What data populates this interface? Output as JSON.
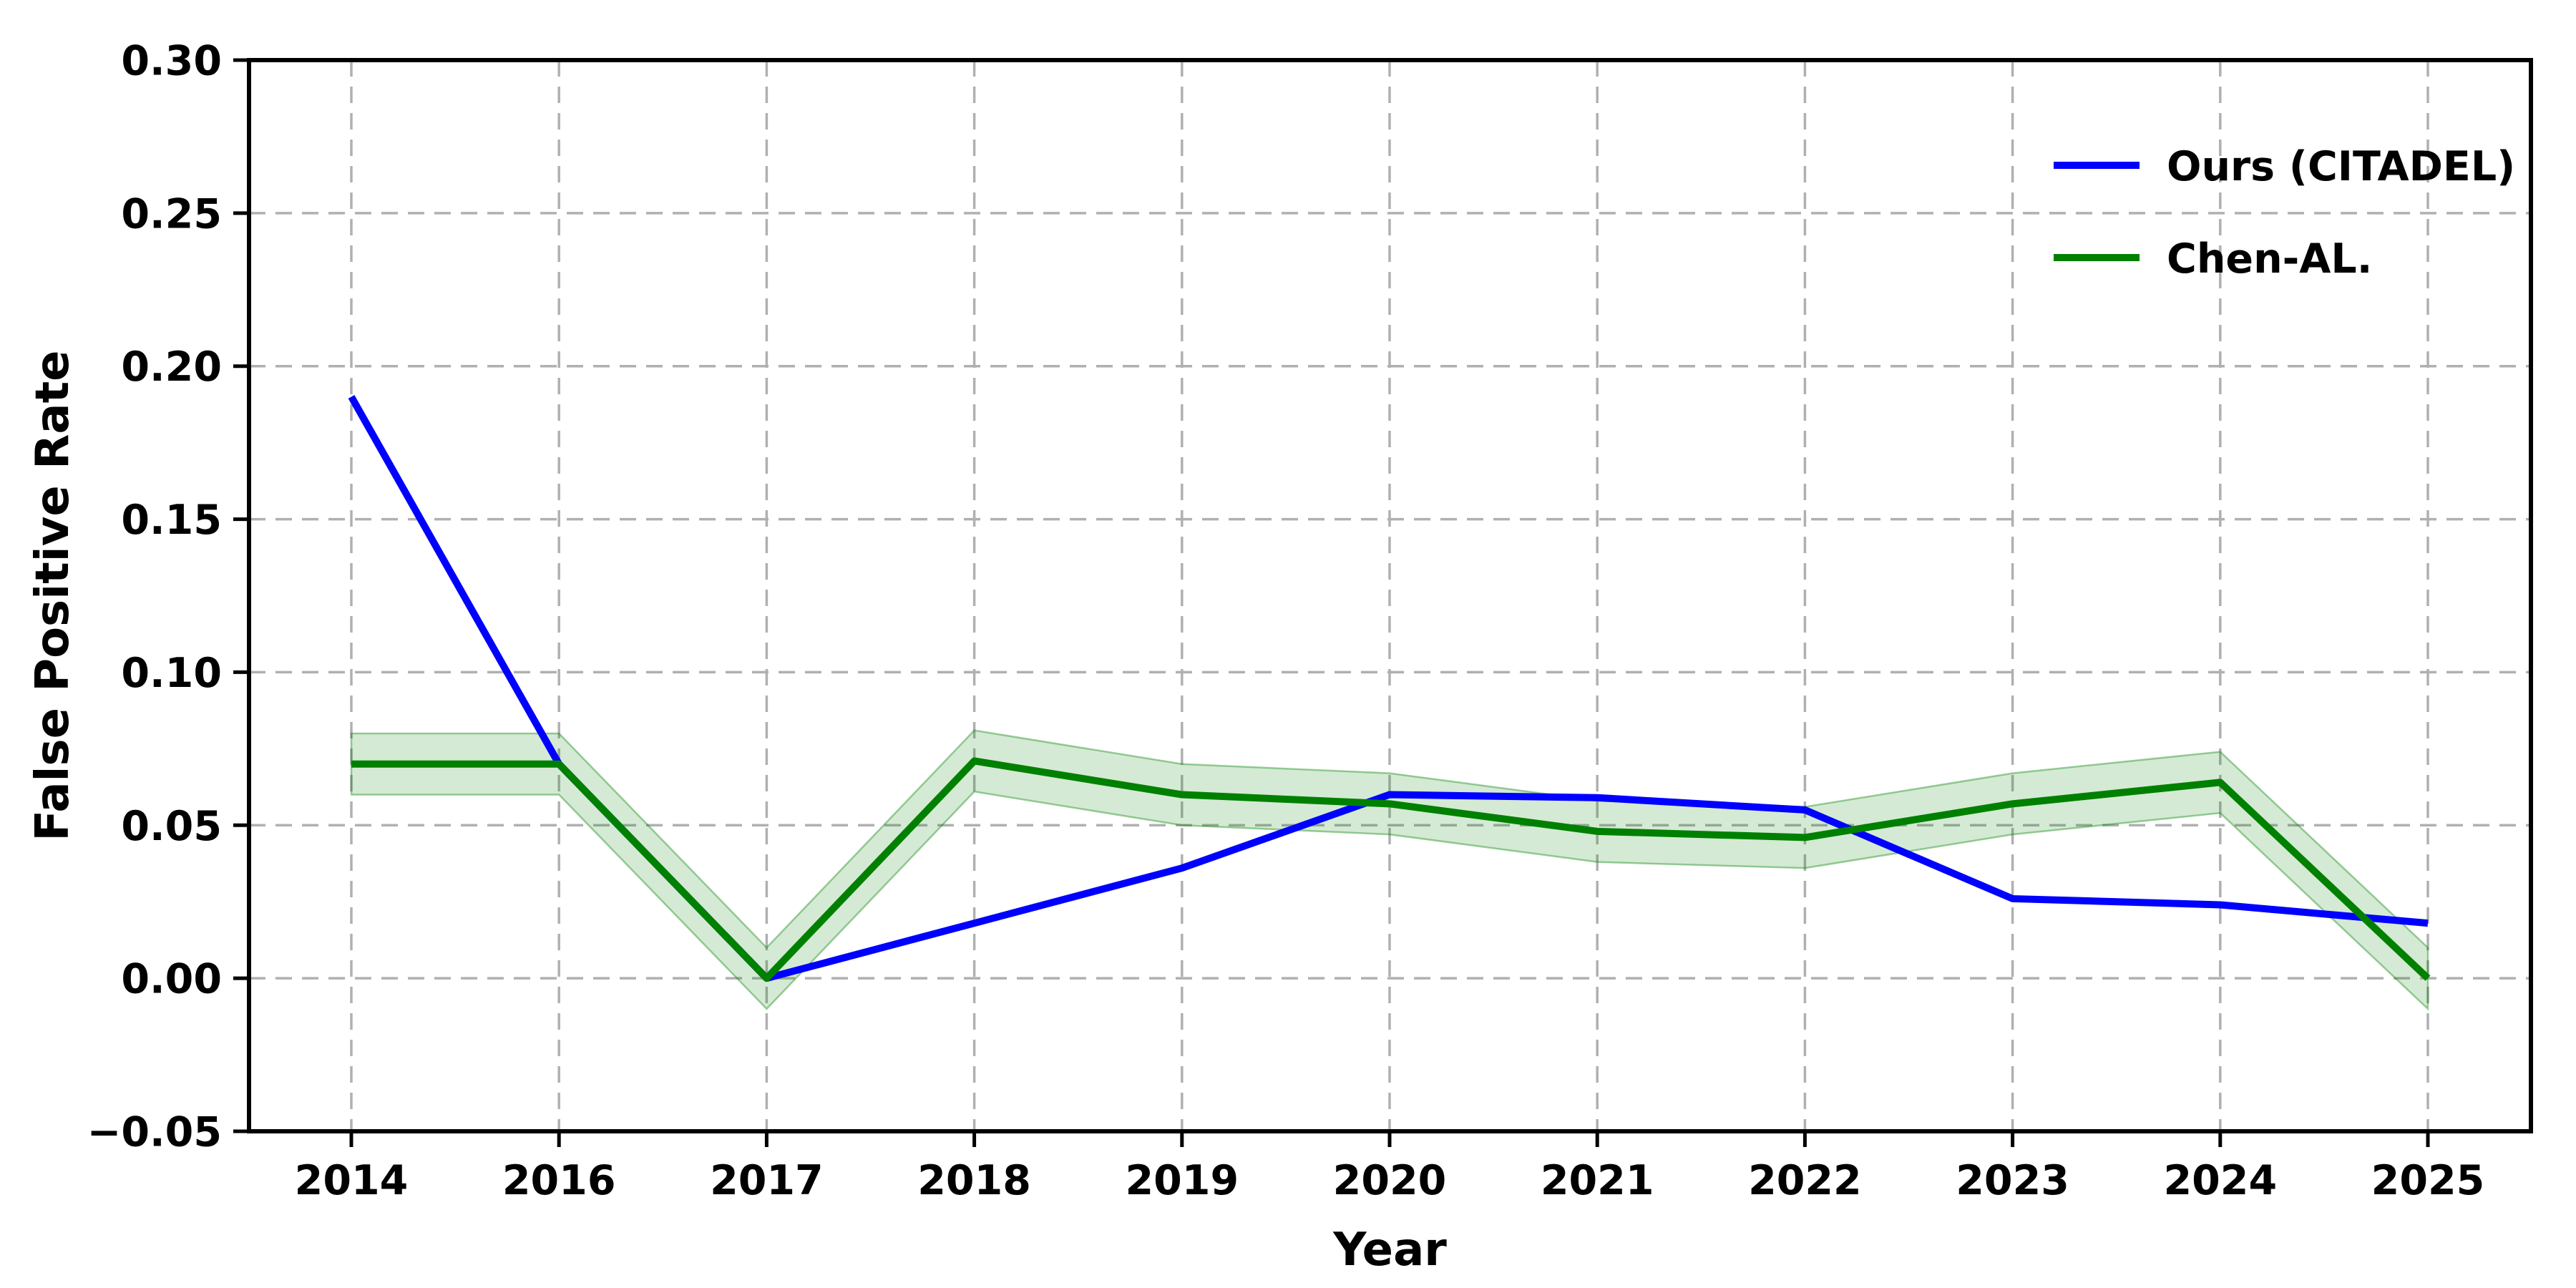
{
  "figure": {
    "background": "#ffffff"
  },
  "chart_data": {
    "type": "line",
    "title": "",
    "xlabel": "Year",
    "ylabel": "False Positive Rate",
    "categories": [
      "2014",
      "2016",
      "2017",
      "2018",
      "2019",
      "2020",
      "2021",
      "2022",
      "2023",
      "2024",
      "2025"
    ],
    "ylim": [
      -0.05,
      0.3
    ],
    "ytick_values": [
      -0.05,
      0.0,
      0.05,
      0.1,
      0.15,
      0.2,
      0.25,
      0.3
    ],
    "ytick_labels": [
      "−0.05",
      "0.00",
      "0.05",
      "0.10",
      "0.15",
      "0.20",
      "0.25",
      "0.30"
    ],
    "grid": true,
    "grid_style": "dashed",
    "grid_color": "#b0b0b0",
    "legend_position": "upper right",
    "series": [
      {
        "name": "Ours (CITADEL)",
        "color": "#0000ff",
        "values": [
          0.19,
          0.07,
          0.0,
          0.018,
          0.036,
          0.06,
          0.059,
          0.055,
          0.026,
          0.024,
          0.018
        ]
      },
      {
        "name": "Chen-AL.",
        "color": "#008000",
        "values": [
          0.07,
          0.07,
          0.0,
          0.071,
          0.06,
          0.057,
          0.048,
          0.046,
          0.057,
          0.064,
          0.0
        ],
        "band_halfwidth": 0.01,
        "band_fill_color": "rgba(0,128,0,0.17)",
        "band_edge_color": "rgba(0,128,0,0.38)"
      }
    ]
  }
}
